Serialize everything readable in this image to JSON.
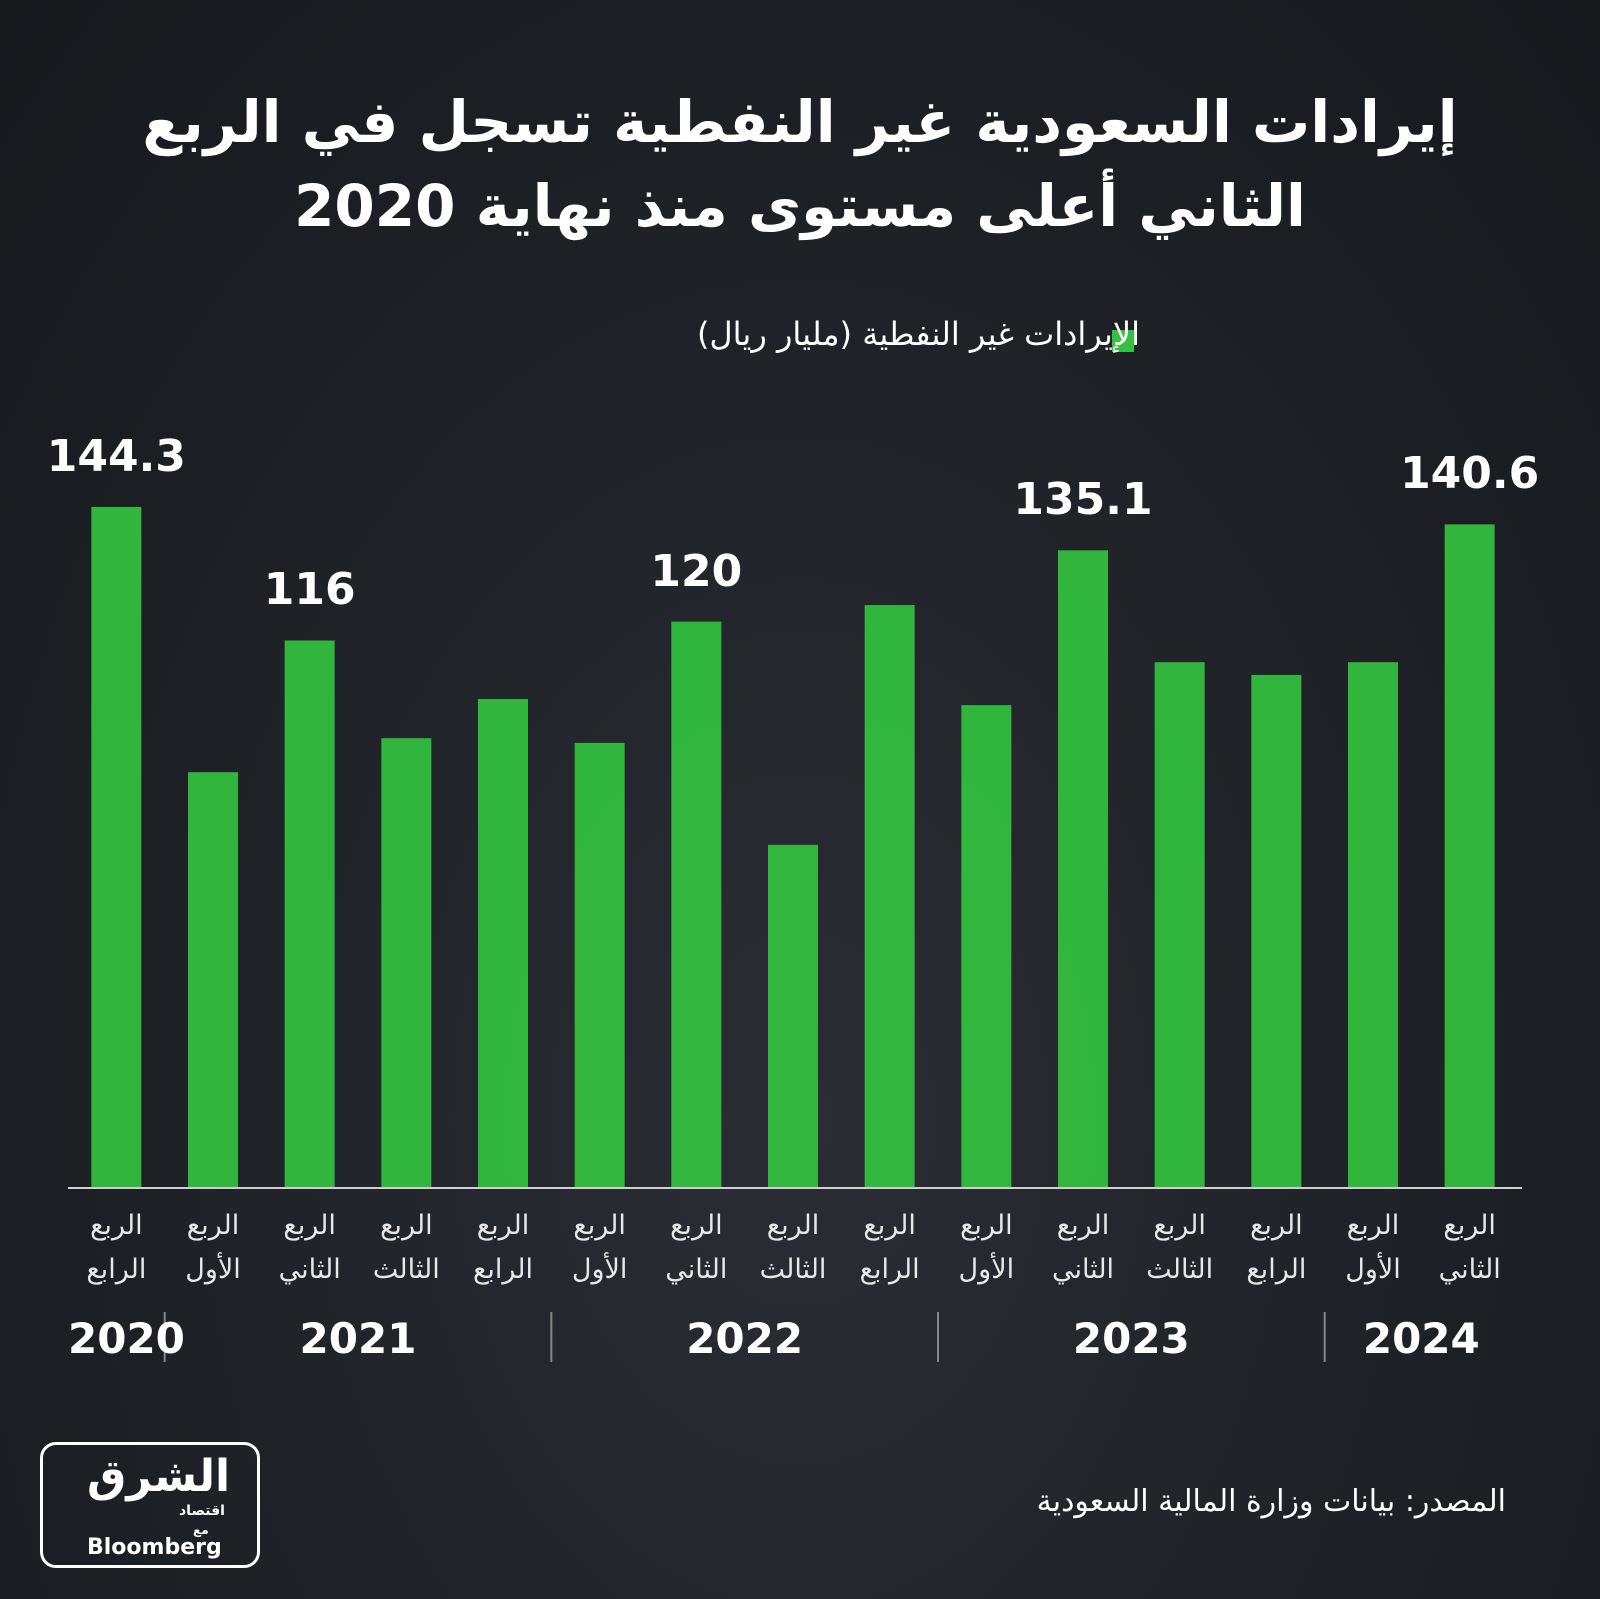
{
  "title": "إيرادات السعودية غير النفطية تسجل في الربع الثاني أعلى مستوى منذ نهاية 2020",
  "source": "المصدر: بيانات وزارة المالية السعودية",
  "logo": {
    "arabic": "الشرق",
    "sub": "اقتصاد",
    "with": "مع",
    "brand": "Bloomberg"
  },
  "chart_data": {
    "type": "bar",
    "categories": [
      "الربع الرابع",
      "الربع الأول",
      "الربع الثاني",
      "الربع الثالث",
      "الربع الرابع",
      "الربع الأول",
      "الربع الثاني",
      "الربع الثالث",
      "الربع الرابع",
      "الربع الأول",
      "الربع الثاني",
      "الربع الثالث",
      "الربع الرابع",
      "الربع الأول",
      "الربع الثاني"
    ],
    "category_years": [
      "2020",
      "2021",
      "2021",
      "2021",
      "2021",
      "2022",
      "2022",
      "2022",
      "2022",
      "2023",
      "2023",
      "2023",
      "2023",
      "2024",
      "2024"
    ],
    "series": [
      {
        "name": "الإيرادات غير النفطية (مليار ريال)",
        "color": "#33c23f",
        "values": [
          144.3,
          88.1,
          116,
          95.3,
          103.6,
          94.3,
          120,
          72.7,
          123.5,
          102.3,
          135.1,
          111.4,
          108.7,
          111.4,
          140.6
        ],
        "value_labels": [
          "144.3",
          null,
          "116",
          null,
          null,
          null,
          "120",
          null,
          null,
          null,
          "135.1",
          null,
          null,
          null,
          "140.6"
        ]
      }
    ],
    "ylim": [
      0,
      150
    ]
  }
}
